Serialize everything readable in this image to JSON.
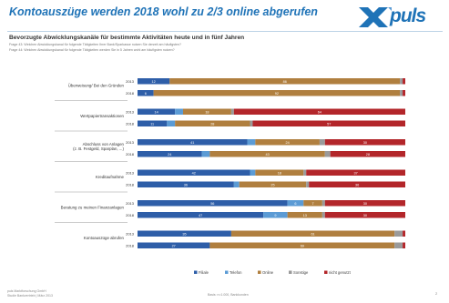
{
  "header": {
    "title": "Kontoauszüge werden 2018 wohl zu 2/3 online abgerufen",
    "logo_text": "puls",
    "subtitle": "Bevorzugte Abwicklungskanäle für bestimmte Aktivitäten heute und in fünf Jahren",
    "question_1": "Frage 43: Welchen Abwicklungskanal für folgende Tätigkeiten Ihrer Bank/Sparkasse nutzen Sie derzeit am häufigsten?",
    "question_2": "Frage 44: Welchen Abwicklungskanal für folgende Tätigkeiten werden Sie in 5 Jahren wohl am häufigsten nutzen?"
  },
  "footer": {
    "left_line1": "puls Marktforschung GmbH",
    "left_line2": "Studie Bankvertrieb | März 2013",
    "mid": "Basis: n=1.000, Bankkunden",
    "page": "2"
  },
  "colors": {
    "Filiale": "#2e5ea8",
    "Telefon": "#5b9bd5",
    "Online": "#b07f3f",
    "Sonstige": "#9a9a9a",
    "nicht genutzt": "#b3262a"
  },
  "chart_data": {
    "type": "bar",
    "orientation": "horizontal",
    "stacked": true,
    "xlim": [
      0,
      100
    ],
    "legend_position": "bottom",
    "grid": false,
    "categories": [
      "Überweisung/ Bei den Gründen",
      "Wertpapiertransaktionen",
      "Abschluss von Anlagen (z. B. Festgeld, Sparplan, ...)",
      "Kreditaufnahme",
      "Beratung zu meinen Finanzanlagen",
      "Kontoauszüge abrufen"
    ],
    "years": [
      "2013",
      "2018"
    ],
    "legend": [
      "Filiale",
      "Telefon",
      "Online",
      "Sonstige",
      "nicht genutzt"
    ],
    "rows": [
      {
        "category": "Überweisung/ Bei den Gründen",
        "year": "2013",
        "values": [
          12,
          0,
          86,
          1,
          1
        ],
        "labels": [
          "12",
          "",
          "86",
          "",
          ""
        ]
      },
      {
        "category": "Überweisung/ Bei den Gründen",
        "year": "2018",
        "values": [
          6,
          0,
          92,
          1,
          1
        ],
        "labels": [
          "6",
          "",
          "92",
          "",
          ""
        ]
      },
      {
        "category": "Wertpapiertransaktionen",
        "year": "2013",
        "values": [
          14,
          3,
          18,
          1,
          64
        ],
        "labels": [
          "14",
          "",
          "18",
          "",
          "64"
        ]
      },
      {
        "category": "Wertpapiertransaktionen",
        "year": "2018",
        "values": [
          11,
          3,
          28,
          1,
          57
        ],
        "labels": [
          "11",
          "",
          "28",
          "",
          "57"
        ]
      },
      {
        "category": "Abschluss von Anlagen (z. B. Festgeld, Sparplan, ...)",
        "year": "2013",
        "values": [
          41,
          3,
          24,
          2,
          30
        ],
        "labels": [
          "41",
          "",
          "24",
          "",
          "30"
        ]
      },
      {
        "category": "Abschluss von Anlagen (z. B. Festgeld, Sparplan, ...)",
        "year": "2018",
        "values": [
          24,
          3,
          43,
          2,
          28
        ],
        "labels": [
          "24",
          "",
          "43",
          "",
          "28"
        ]
      },
      {
        "category": "Kreditaufnahme",
        "year": "2013",
        "values": [
          42,
          2,
          18,
          1,
          37
        ],
        "labels": [
          "42",
          "",
          "18",
          "",
          "37"
        ]
      },
      {
        "category": "Kreditaufnahme",
        "year": "2018",
        "values": [
          36,
          2,
          25,
          1,
          36
        ],
        "labels": [
          "36",
          "",
          "25",
          "",
          "36"
        ]
      },
      {
        "category": "Beratung zu meinen Finanzanlagen",
        "year": "2013",
        "values": [
          56,
          6,
          7,
          1,
          30
        ],
        "labels": [
          "56",
          "6",
          "7",
          "",
          "30"
        ]
      },
      {
        "category": "Beratung zu meinen Finanzanlagen",
        "year": "2018",
        "values": [
          47,
          9,
          13,
          1,
          30
        ],
        "labels": [
          "47",
          "9",
          "13",
          "",
          "30"
        ]
      },
      {
        "category": "Kontoauszüge abrufen",
        "year": "2013",
        "values": [
          35,
          0,
          61,
          3,
          1
        ],
        "labels": [
          "35",
          "",
          "61",
          "",
          ""
        ]
      },
      {
        "category": "Kontoauszüge abrufen",
        "year": "2018",
        "values": [
          27,
          0,
          69,
          3,
          1
        ],
        "labels": [
          "27",
          "",
          "69",
          "",
          ""
        ]
      }
    ]
  }
}
